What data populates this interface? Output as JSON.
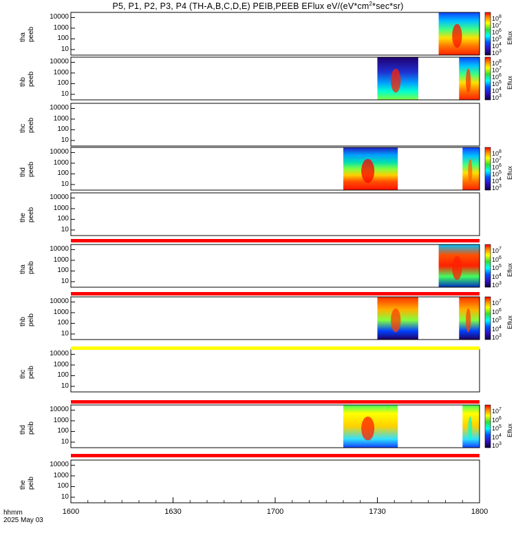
{
  "title_prefix": "P5, P1, P2, P3, P4 (TH-A,B,C,D,E) PEIB,PEEB EFlux eV/(eV*cm",
  "title_sup": "2",
  "title_suffix": "*sec*sr)",
  "time_axis": {
    "label_line1": "hhmm",
    "label_line2": "2025 May 03",
    "ticks": [
      "1600",
      "1630",
      "1700",
      "1730",
      "1800"
    ]
  },
  "colors": {
    "flag_red": "#ff0000",
    "flag_yellow": "#ffff00"
  },
  "chart_data": [
    {
      "type": "heatmap",
      "ylabel": [
        "tha",
        "peeb"
      ],
      "yscale": "log",
      "yticks": [
        "10000",
        "1000",
        "100",
        "10"
      ],
      "data_spans": [
        [
          "17:48",
          "18:00"
        ]
      ],
      "colorbar": {
        "labels": [
          "10^8",
          "10^7",
          "10^6",
          "10^5",
          "10^4",
          "10^3"
        ],
        "unit": "Eflux"
      }
    },
    {
      "type": "heatmap",
      "ylabel": [
        "thb",
        "peeb"
      ],
      "yscale": "log",
      "yticks": [
        "10000",
        "1000",
        "100",
        "10"
      ],
      "data_spans": [
        [
          "17:30",
          "17:42"
        ],
        [
          "17:54",
          "18:00"
        ]
      ],
      "colorbar": {
        "labels": [
          "10^8",
          "10^7",
          "10^6",
          "10^5",
          "10^4",
          "10^3"
        ],
        "unit": "Eflux"
      }
    },
    {
      "type": "heatmap",
      "ylabel": [
        "thc",
        "peeb"
      ],
      "yscale": "log",
      "yticks": [
        "10000",
        "1000",
        "100",
        "10"
      ],
      "data_spans": []
    },
    {
      "type": "heatmap",
      "ylabel": [
        "thd",
        "peeb"
      ],
      "yscale": "log",
      "yticks": [
        "10000",
        "1000",
        "100",
        "10"
      ],
      "data_spans": [
        [
          "17:20",
          "17:36"
        ],
        [
          "17:55",
          "18:00"
        ]
      ],
      "colorbar": {
        "labels": [
          "10^8",
          "10^7",
          "10^6",
          "10^5",
          "10^4",
          "10^3"
        ],
        "unit": "Eflux"
      }
    },
    {
      "type": "heatmap",
      "ylabel": [
        "the",
        "peeb"
      ],
      "yscale": "log",
      "yticks": [
        "10000",
        "1000",
        "100",
        "10"
      ],
      "data_spans": []
    },
    {
      "type": "heatmap",
      "ylabel": [
        "tha",
        "peib"
      ],
      "yscale": "log",
      "yticks": [
        "10000",
        "1000",
        "100",
        "10"
      ],
      "data_spans": [
        [
          "17:48",
          "18:00"
        ]
      ],
      "colorbar": {
        "labels": [
          "10^7",
          "10^6",
          "10^5",
          "10^4",
          "10^3"
        ],
        "unit": "Eflux"
      }
    },
    {
      "type": "heatmap",
      "ylabel": [
        "thb",
        "peib"
      ],
      "yscale": "log",
      "yticks": [
        "10000",
        "1000",
        "100",
        "10"
      ],
      "data_spans": [
        [
          "17:30",
          "17:42"
        ],
        [
          "17:54",
          "18:00"
        ]
      ],
      "colorbar": {
        "labels": [
          "10^7",
          "10^6",
          "10^5",
          "10^4",
          "10^3"
        ],
        "unit": "Eflux"
      }
    },
    {
      "type": "heatmap",
      "ylabel": [
        "thc",
        "peib"
      ],
      "yscale": "log",
      "yticks": [
        "10000",
        "1000",
        "100",
        "10"
      ],
      "data_spans": []
    },
    {
      "type": "heatmap",
      "ylabel": [
        "thd",
        "peib"
      ],
      "yscale": "log",
      "yticks": [
        "10000",
        "1000",
        "100",
        "10"
      ],
      "data_spans": [
        [
          "17:20",
          "17:36"
        ],
        [
          "17:55",
          "18:00"
        ]
      ],
      "colorbar": {
        "labels": [
          "10^7",
          "10^6",
          "10^5",
          "10^4",
          "10^3"
        ],
        "unit": "Eflux"
      }
    },
    {
      "type": "heatmap",
      "ylabel": [
        "the",
        "peib"
      ],
      "yscale": "log",
      "yticks": [
        "10000",
        "1000",
        "100",
        "10"
      ],
      "data_spans": []
    }
  ]
}
